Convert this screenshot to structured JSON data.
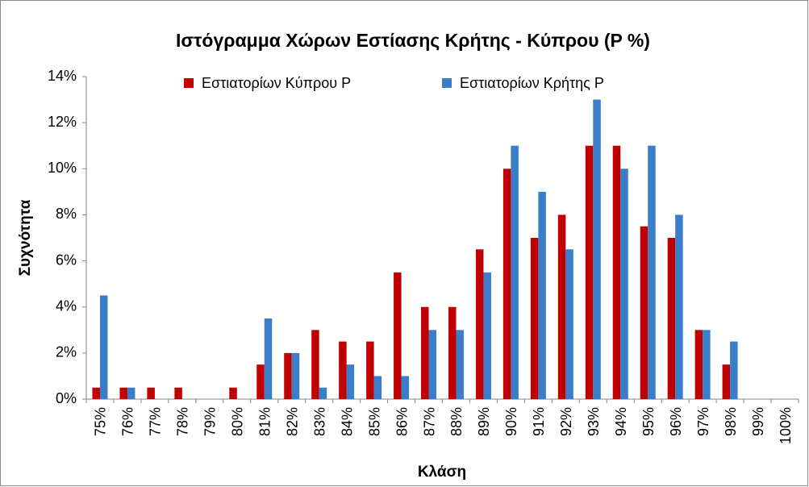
{
  "chart_data": {
    "type": "bar",
    "title": "Ιστόγραμμα Χώρων Εστίασης Κρήτης - Κύπρου (P %)",
    "x_label": "Κλάση",
    "y_label": "Συχνότητα",
    "categories": [
      "75%",
      "76%",
      "77%",
      "78%",
      "79%",
      "80%",
      "81%",
      "82%",
      "83%",
      "84%",
      "85%",
      "86%",
      "87%",
      "88%",
      "89%",
      "90%",
      "91%",
      "92%",
      "93%",
      "94%",
      "95%",
      "96%",
      "97%",
      "98%",
      "99%",
      "100%"
    ],
    "series": [
      {
        "name": "Εστιατορίων Κύπρου P",
        "color": "#c00000",
        "values": [
          0.5,
          0.5,
          0.5,
          0.5,
          0,
          0.5,
          1.5,
          2,
          3,
          2.5,
          2.5,
          5.5,
          4,
          4,
          6.5,
          10,
          7,
          8,
          11,
          11,
          7.5,
          7,
          3,
          1.5,
          0,
          0
        ]
      },
      {
        "name": "Εστιατορίων Κρήτης P",
        "color": "#3a7dc9",
        "values": [
          4.5,
          0.5,
          0,
          0,
          0,
          0,
          3.5,
          2,
          0.5,
          1.5,
          1,
          1,
          3,
          3,
          5.5,
          11,
          9,
          6.5,
          13,
          10,
          11,
          8,
          3,
          2.5,
          0,
          0
        ]
      }
    ],
    "ylim": [
      0,
      14
    ],
    "yticks": [
      {
        "value": 0,
        "label": "0%"
      },
      {
        "value": 2,
        "label": "2%"
      },
      {
        "value": 4,
        "label": "4%"
      },
      {
        "value": 6,
        "label": "6%"
      },
      {
        "value": 8,
        "label": "8%"
      },
      {
        "value": 10,
        "label": "10%"
      },
      {
        "value": 12,
        "label": "12%"
      },
      {
        "value": 14,
        "label": "14%"
      }
    ],
    "grid": false,
    "legend": "top"
  }
}
